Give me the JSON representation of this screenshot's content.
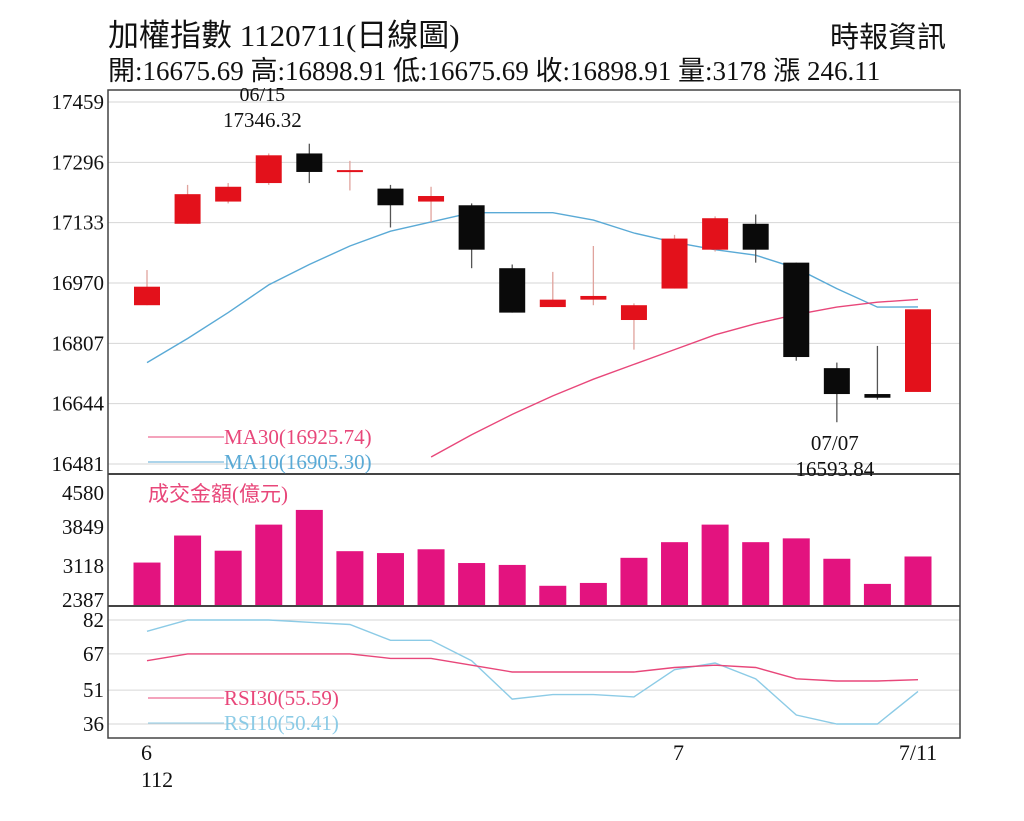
{
  "header": {
    "title": "加權指數 1120711(日線圖)",
    "source": "時報資訊",
    "summary": "開:16675.69 高:16898.91 低:16675.69 收:16898.91 量:3178 漲 246.11"
  },
  "colors": {
    "up": "#e3111b",
    "down": "#0a0a0a",
    "ma10": "#5aaad6",
    "ma30": "#e8477a",
    "volume": "#e3137f",
    "rsi10": "#8ccbe6",
    "rsi30": "#e8477a",
    "grid": "#d6d6d6",
    "frame": "#444444"
  },
  "chart_data": {
    "type": "candlestick",
    "price_axis": {
      "ticks": [
        17459,
        17296,
        17133,
        16970,
        16807,
        16644,
        16481
      ],
      "ylim": [
        16481,
        17459
      ]
    },
    "volume_axis": {
      "label": "成交金額(億元)",
      "ticks": [
        4580,
        3849,
        3118,
        2387
      ],
      "ylim": [
        2387,
        4580
      ]
    },
    "rsi_axis": {
      "ticks": [
        82,
        67,
        51,
        36
      ],
      "ylim": [
        36,
        82
      ]
    },
    "x_labels": [
      {
        "index": 0,
        "text": "6"
      },
      {
        "index": 0,
        "text": "112"
      },
      {
        "index": 13,
        "text": "7"
      },
      {
        "index": 19,
        "text": "7/11"
      }
    ],
    "candles": [
      {
        "open": 16910,
        "close": 16960,
        "high": 17005,
        "low": 16910
      },
      {
        "open": 17130,
        "close": 17210,
        "high": 17235,
        "low": 17130
      },
      {
        "open": 17190,
        "close": 17230,
        "high": 17240,
        "low": 17185
      },
      {
        "open": 17240,
        "close": 17315,
        "high": 17320,
        "low": 17235
      },
      {
        "open": 17320,
        "close": 17270,
        "high": 17346.32,
        "low": 17240
      },
      {
        "open": 17270,
        "close": 17275,
        "high": 17300,
        "low": 17220
      },
      {
        "open": 17225,
        "close": 17180,
        "high": 17235,
        "low": 17120
      },
      {
        "open": 17190,
        "close": 17205,
        "high": 17230,
        "low": 17135
      },
      {
        "open": 17180,
        "close": 17060,
        "high": 17185,
        "low": 17010
      },
      {
        "open": 17010,
        "close": 16890,
        "high": 17020,
        "low": 16890
      },
      {
        "open": 16905,
        "close": 16925,
        "high": 17000,
        "low": 16905
      },
      {
        "open": 16925,
        "close": 16935,
        "high": 17070,
        "low": 16910
      },
      {
        "open": 16870,
        "close": 16910,
        "high": 16915,
        "low": 16790
      },
      {
        "open": 16955,
        "close": 17090,
        "high": 17100,
        "low": 16955
      },
      {
        "open": 17060,
        "close": 17145,
        "high": 17150,
        "low": 17055
      },
      {
        "open": 17130,
        "close": 17060,
        "high": 17155,
        "low": 17025
      },
      {
        "open": 17025,
        "close": 16770,
        "high": 17025,
        "low": 16760
      },
      {
        "open": 16740,
        "close": 16670,
        "high": 16755,
        "low": 16593.84
      },
      {
        "open": 16670,
        "close": 16660,
        "high": 16800,
        "low": 16655
      },
      {
        "open": 16675.69,
        "close": 16898.91,
        "high": 16898.91,
        "low": 16675.69
      }
    ],
    "annotations": [
      {
        "index": 4,
        "date": "06/15",
        "value": "17346.32",
        "type": "high"
      },
      {
        "index": 17,
        "date": "07/07",
        "value": "16593.84",
        "type": "low"
      }
    ],
    "ma10": {
      "label": "MA10(16905.30)",
      "values": [
        16755,
        16820,
        16890,
        16965,
        17020,
        17070,
        17110,
        17135,
        17160,
        17160,
        17160,
        17140,
        17105,
        17080,
        17060,
        17045,
        17010,
        16955,
        16905,
        16905.3
      ]
    },
    "ma30": {
      "label": "MA30(16925.74)",
      "values": [
        null,
        null,
        null,
        null,
        null,
        null,
        null,
        16500,
        16560,
        16615,
        16665,
        16710,
        16750,
        16790,
        16830,
        16860,
        16885,
        16905,
        16918,
        16925.74
      ]
    },
    "volume": [
      3050,
      3620,
      3300,
      3850,
      4160,
      3290,
      3250,
      3330,
      3040,
      3000,
      2560,
      2620,
      3150,
      3480,
      3850,
      3480,
      3560,
      3130,
      2600,
      3178
    ],
    "rsi10": {
      "label": "RSI10(50.41)",
      "values": [
        77,
        82,
        82,
        82,
        81,
        80,
        73,
        73,
        64,
        47,
        49,
        49,
        48,
        60,
        63,
        56,
        40,
        36,
        36,
        50.41
      ]
    },
    "rsi30": {
      "label": "RSI30(55.59)",
      "values": [
        64,
        67,
        67,
        67,
        67,
        67,
        65,
        65,
        62,
        59,
        59,
        59,
        59,
        61,
        62,
        61,
        56,
        55,
        55,
        55.59
      ]
    }
  }
}
